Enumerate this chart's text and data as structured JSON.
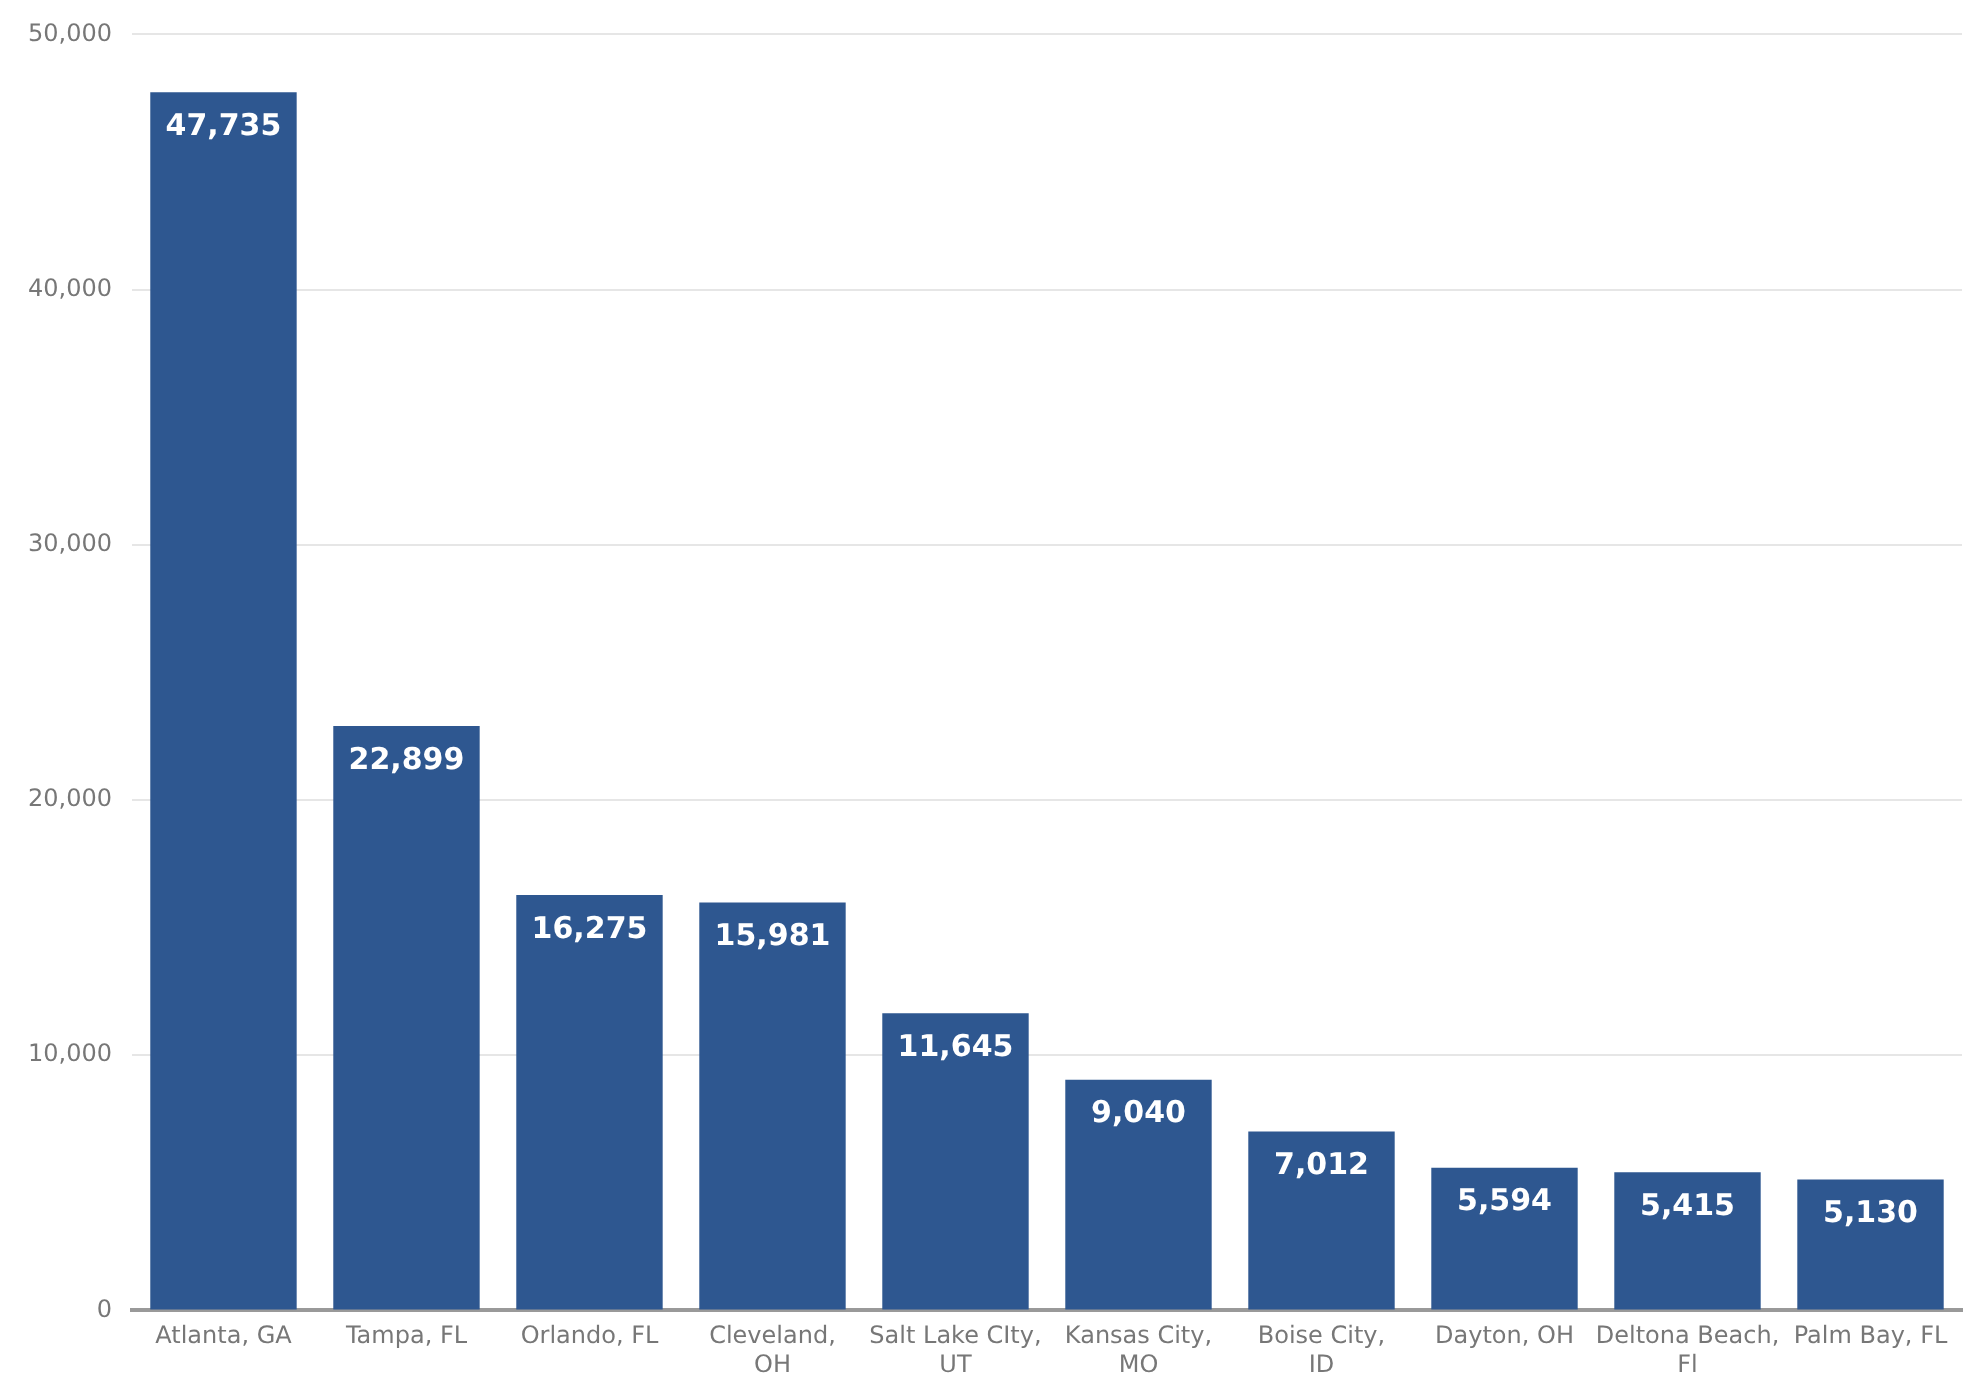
{
  "chart_data": {
    "type": "bar",
    "categories": [
      "Atlanta, GA",
      "Tampa, FL",
      "Orlando, FL",
      "Cleveland, OH",
      "Salt Lake CIty, UT",
      "Kansas City, MO",
      "Boise City, ID",
      "Dayton, OH",
      "Deltona Beach, Fl",
      "Palm Bay, FL"
    ],
    "values": [
      47735,
      22899,
      16275,
      15981,
      11645,
      9040,
      7012,
      5594,
      5415,
      5130
    ],
    "color": "#2e5790",
    "ylim": [
      0,
      50000
    ],
    "yticks": [
      0,
      {
        "value": 10000,
        "label": "10,000"
      },
      {
        "value": 20000,
        "label": "20,000"
      },
      {
        "value": 30000,
        "label": "30,000"
      },
      {
        "value": 40000,
        "label": "40,000"
      },
      {
        "value": 50000,
        "label": "50,000"
      }
    ],
    "value_labels": [
      "47,735",
      "22,899",
      "16,275",
      "15,981",
      "11,645",
      "9,040",
      "7,012",
      "5,594",
      "5,415",
      "5,130"
    ],
    "grid": "y"
  }
}
